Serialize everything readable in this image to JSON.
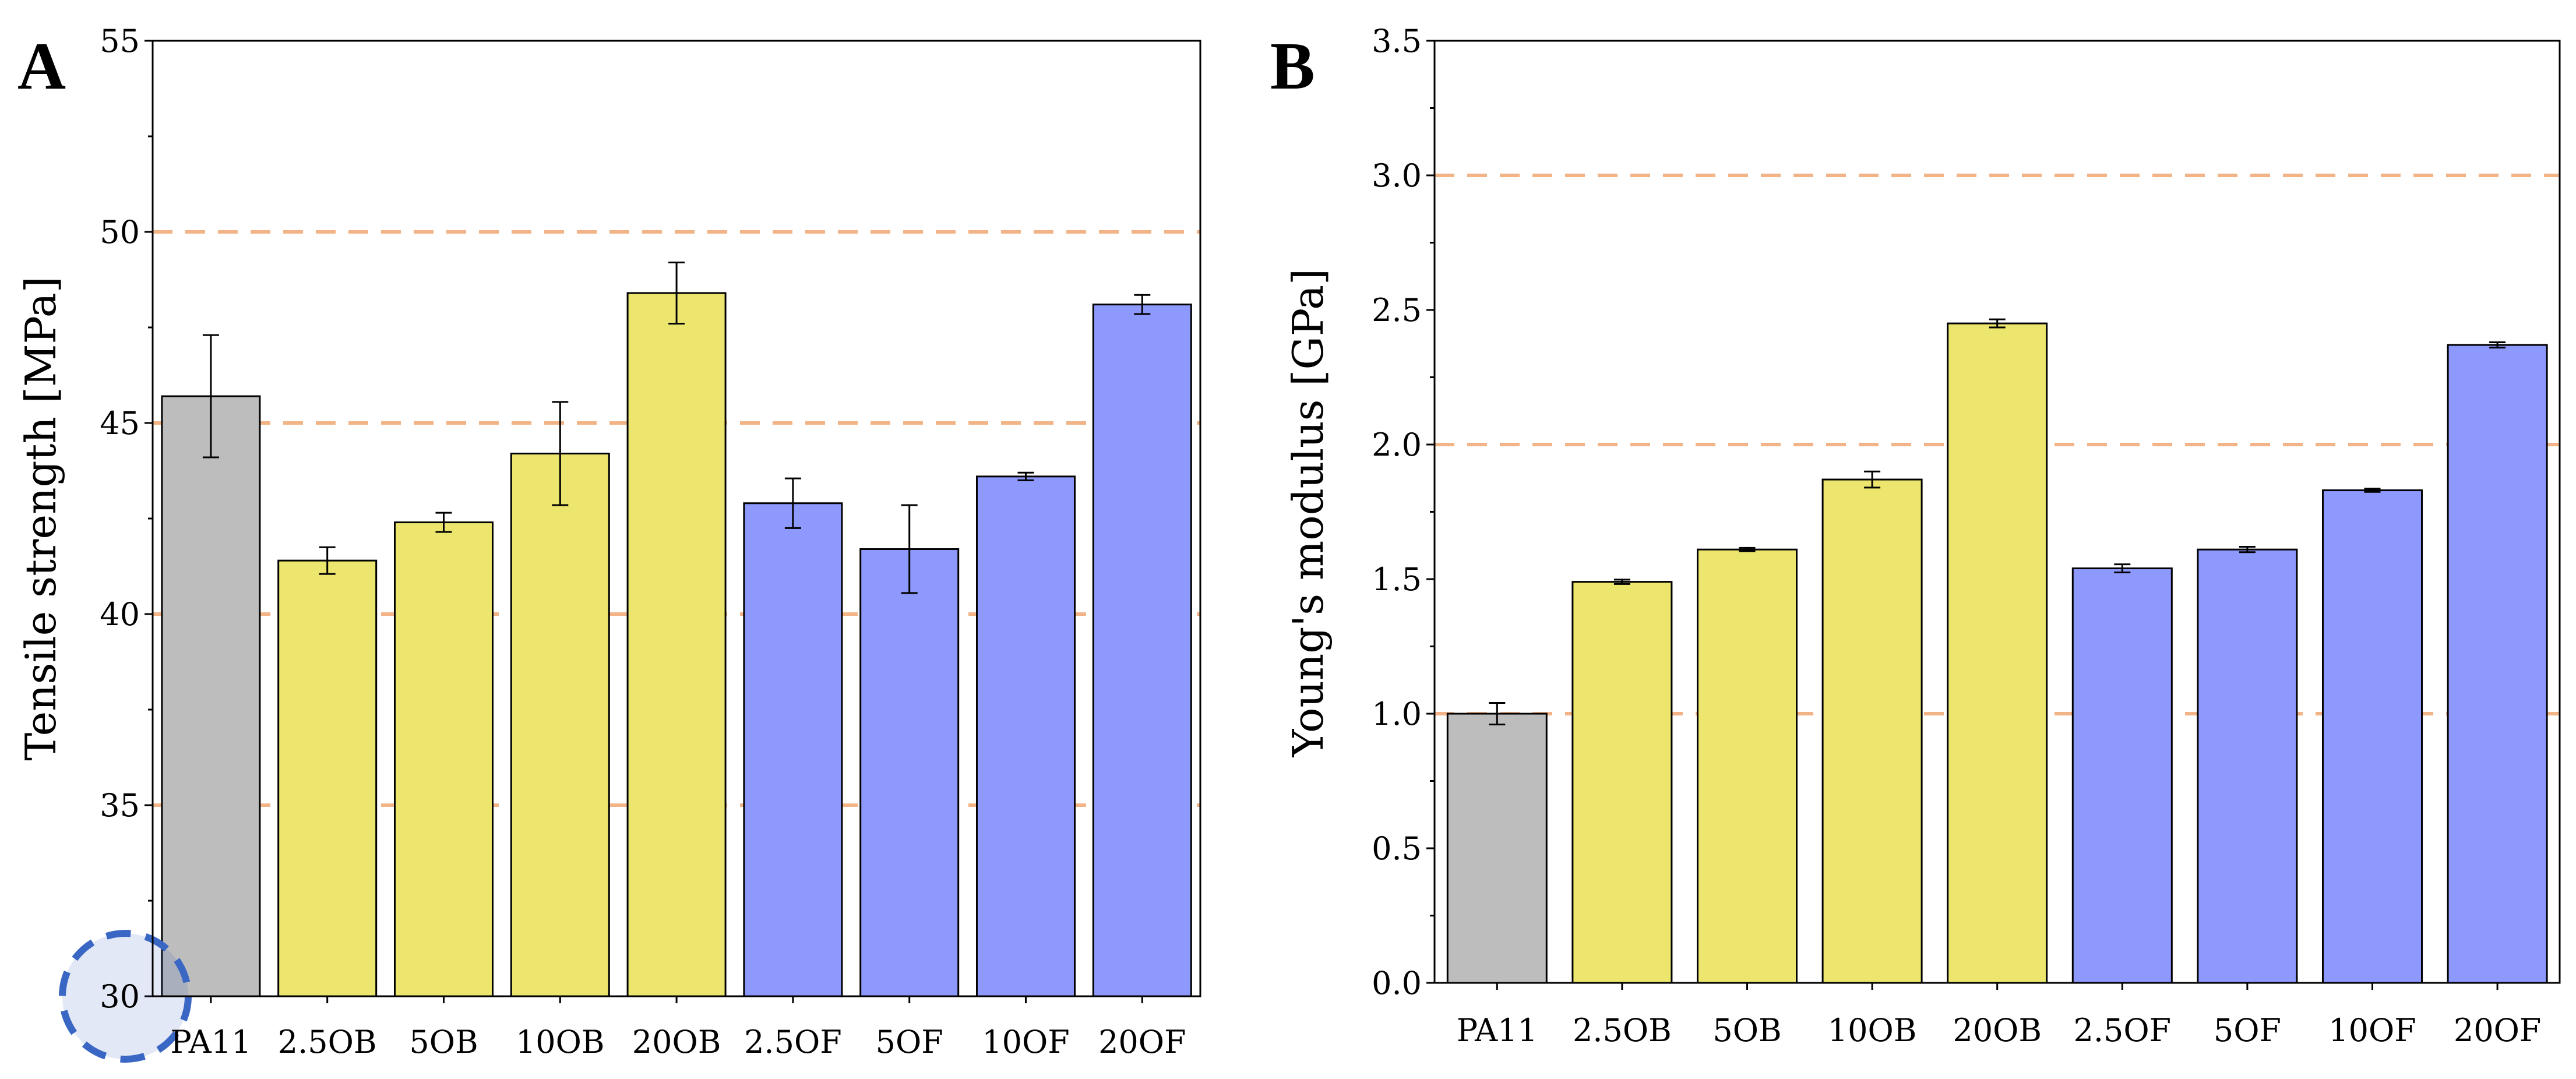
{
  "colors": {
    "gray": "#bdbdbd",
    "yellow": "#ece66e",
    "blue": "#8e99fd",
    "ref_line": "#f2b486",
    "marker": "#3a67c4"
  },
  "chart_data": [
    {
      "type": "bar",
      "panel": "A",
      "ylabel": "Tensile strength [MPa]",
      "ylim": [
        30,
        55
      ],
      "yticks": [
        30,
        35,
        40,
        45,
        50,
        55
      ],
      "ytick_labels": [
        "30",
        "35",
        "40",
        "45",
        "50",
        "55"
      ],
      "reference_lines": [
        35,
        40,
        45,
        50
      ],
      "categories": [
        "PA11",
        "2.5OB",
        "5OB",
        "10OB",
        "20OB",
        "2.5OF",
        "5OF",
        "10OF",
        "20OF"
      ],
      "values": [
        45.7,
        41.4,
        42.4,
        44.2,
        48.4,
        42.9,
        41.7,
        43.6,
        48.1
      ],
      "errors": [
        1.6,
        0.35,
        0.25,
        1.35,
        0.8,
        0.65,
        1.15,
        0.1,
        0.25
      ],
      "bar_colors": [
        "gray",
        "yellow",
        "yellow",
        "yellow",
        "yellow",
        "blue",
        "blue",
        "blue",
        "blue"
      ],
      "highlighted_tick": "30"
    },
    {
      "type": "bar",
      "panel": "B",
      "ylabel": "Young's modulus [GPa]",
      "ylim": [
        0,
        3.5
      ],
      "yticks": [
        0,
        0.5,
        1.0,
        1.5,
        2.0,
        2.5,
        3.0,
        3.5
      ],
      "ytick_labels": [
        "0.0",
        "0.5",
        "1.0",
        "1.5",
        "2.0",
        "2.5",
        "3.0",
        "3.5"
      ],
      "reference_lines": [
        1.0,
        2.0,
        3.0
      ],
      "categories": [
        "PA11",
        "2.5OB",
        "5OB",
        "10OB",
        "20OB",
        "2.5OF",
        "5OF",
        "10OF",
        "20OF"
      ],
      "values": [
        1.0,
        1.49,
        1.61,
        1.87,
        2.45,
        1.54,
        1.61,
        1.83,
        2.37
      ],
      "errors": [
        0.04,
        0.008,
        0.006,
        0.03,
        0.015,
        0.015,
        0.01,
        0.006,
        0.01
      ],
      "bar_colors": [
        "gray",
        "yellow",
        "yellow",
        "yellow",
        "yellow",
        "blue",
        "blue",
        "blue",
        "blue"
      ]
    }
  ]
}
